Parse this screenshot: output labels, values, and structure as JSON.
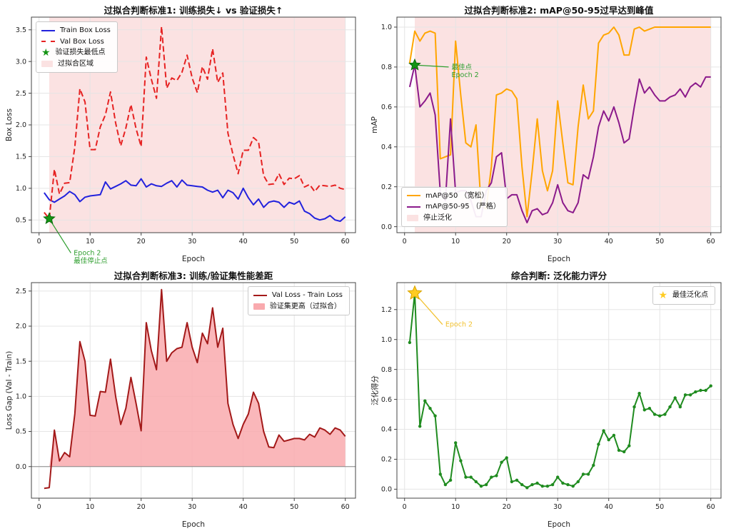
{
  "page": {
    "background": "#ffffff"
  },
  "colors": {
    "train_blue": "#2222dd",
    "val_red": "#e62222",
    "star_green": "#149414",
    "overfit_shade_pink": "#fbe2e2",
    "map50_orange": "#ffa500",
    "map95_purple": "#8b1a8b",
    "gap_darkred": "#a31919",
    "gap_fill_pink": "#f9aaae",
    "score_green": "#1f8b1f",
    "best_gold": "#ffcc22",
    "grid_gray": "#e5e5e5"
  },
  "chart_data": [
    {
      "type": "line",
      "title": "过拟合判断标准1: 训练损失↓ vs 验证损失↑",
      "xlabel": "Epoch",
      "ylabel": "Box Loss",
      "x_epoch_start": 1,
      "xlim": [
        -1.5,
        62
      ],
      "ylim": [
        0.3,
        3.7
      ],
      "xticks": [
        0,
        10,
        20,
        30,
        40,
        50,
        60
      ],
      "yticks": [
        0.5,
        1.0,
        1.5,
        2.0,
        2.5,
        3.0,
        3.5
      ],
      "grid": true,
      "shade": {
        "from": 2,
        "to": 60,
        "color": "#fbe2e2"
      },
      "series": [
        {
          "name": "Train Box Loss",
          "color": "#2222dd",
          "style": "solid",
          "width": 2,
          "values": [
            0.93,
            0.82,
            0.78,
            0.83,
            0.88,
            0.95,
            0.9,
            0.79,
            0.86,
            0.88,
            0.89,
            0.9,
            1.1,
            0.99,
            1.03,
            1.07,
            1.12,
            1.05,
            1.04,
            1.15,
            1.02,
            1.07,
            1.04,
            1.03,
            1.08,
            1.12,
            1.02,
            1.13,
            1.05,
            1.04,
            1.03,
            1.02,
            0.97,
            0.94,
            0.97,
            0.85,
            0.97,
            0.93,
            0.83,
            1.0,
            0.85,
            0.74,
            0.83,
            0.7,
            0.78,
            0.8,
            0.78,
            0.7,
            0.78,
            0.75,
            0.8,
            0.64,
            0.6,
            0.53,
            0.5,
            0.52,
            0.57,
            0.5,
            0.48,
            0.55
          ]
        },
        {
          "name": "Val Box Loss",
          "color": "#e62222",
          "style": "dashed",
          "width": 2,
          "values": [
            0.62,
            0.52,
            1.3,
            0.91,
            1.08,
            1.09,
            1.65,
            2.57,
            2.36,
            1.61,
            1.61,
            1.97,
            2.16,
            2.52,
            2.03,
            1.67,
            1.95,
            2.32,
            1.94,
            1.66,
            3.07,
            2.72,
            2.42,
            3.55,
            2.58,
            2.74,
            2.7,
            2.83,
            3.1,
            2.74,
            2.51,
            2.92,
            2.72,
            3.2,
            2.67,
            2.82,
            1.87,
            1.53,
            1.23,
            1.6,
            1.6,
            1.8,
            1.73,
            1.2,
            1.06,
            1.07,
            1.23,
            1.06,
            1.16,
            1.15,
            1.2,
            1.02,
            1.06,
            0.95,
            1.05,
            1.04,
            1.03,
            1.05,
            1.0,
            0.98
          ]
        }
      ],
      "star": {
        "x": 2,
        "y": 0.52,
        "color": "#149414",
        "edge": "#0b6b0b",
        "size": 8,
        "label": "验证损失最低点"
      },
      "annotation": {
        "lines": [
          "Epoch 2",
          "最佳停止点"
        ],
        "color": "#2e9e2e",
        "tx": 6.8,
        "ty": -0.02,
        "from": [
          2,
          0.52
        ]
      },
      "legend": {
        "pos": "top-left",
        "items": [
          {
            "swatch": "line",
            "color": "#2222dd",
            "label": "Train Box Loss"
          },
          {
            "swatch": "dash",
            "color": "#e62222",
            "label": "Val Box Loss"
          },
          {
            "swatch": "star",
            "color": "#149414",
            "label": "验证损失最低点"
          },
          {
            "swatch": "patch",
            "color": "#fbe2e2",
            "label": "过拟合区域"
          }
        ]
      }
    },
    {
      "type": "line",
      "title": "过拟合判断标准2: mAP@50-95过早达到峰值",
      "xlabel": "Epoch",
      "ylabel": "mAP",
      "x_epoch_start": 1,
      "xlim": [
        -1.5,
        62
      ],
      "ylim": [
        -0.03,
        1.05
      ],
      "xticks": [
        0,
        10,
        20,
        30,
        40,
        50,
        60
      ],
      "yticks": [
        0.0,
        0.2,
        0.4,
        0.6,
        0.8,
        1.0
      ],
      "grid": true,
      "shade": {
        "from": 2,
        "to": 60,
        "color": "#fbe2e2"
      },
      "series": [
        {
          "name": "mAP@50 （宽松）",
          "color": "#ffa500",
          "style": "solid",
          "width": 2,
          "values": [
            0.82,
            0.98,
            0.93,
            0.97,
            0.98,
            0.97,
            0.34,
            0.35,
            0.36,
            0.93,
            0.66,
            0.42,
            0.4,
            0.51,
            0.1,
            0.09,
            0.3,
            0.66,
            0.67,
            0.69,
            0.68,
            0.64,
            0.3,
            0.05,
            0.28,
            0.54,
            0.28,
            0.18,
            0.28,
            0.63,
            0.42,
            0.22,
            0.21,
            0.5,
            0.71,
            0.54,
            0.58,
            0.92,
            0.96,
            0.97,
            1.0,
            0.96,
            0.86,
            0.86,
            0.99,
            1.0,
            0.98,
            0.99,
            1.0,
            1.0,
            1.0,
            1.0,
            1.0,
            1.0,
            1.0,
            1.0,
            1.0,
            1.0,
            1.0,
            1.0
          ]
        },
        {
          "name": "mAP@50-95 （严格）",
          "color": "#8b1a8b",
          "style": "solid",
          "width": 2,
          "values": [
            0.7,
            0.81,
            0.6,
            0.63,
            0.67,
            0.56,
            0.17,
            0.13,
            0.54,
            0.17,
            0.18,
            0.18,
            0.13,
            0.05,
            0.05,
            0.18,
            0.22,
            0.35,
            0.37,
            0.14,
            0.16,
            0.16,
            0.08,
            0.02,
            0.08,
            0.09,
            0.06,
            0.07,
            0.12,
            0.21,
            0.12,
            0.08,
            0.07,
            0.12,
            0.26,
            0.24,
            0.35,
            0.5,
            0.58,
            0.53,
            0.6,
            0.52,
            0.42,
            0.44,
            0.6,
            0.74,
            0.67,
            0.7,
            0.66,
            0.63,
            0.63,
            0.65,
            0.66,
            0.69,
            0.65,
            0.7,
            0.72,
            0.7,
            0.75,
            0.75
          ]
        }
      ],
      "star": {
        "x": 2,
        "y": 0.81,
        "color": "#149414",
        "edge": "#0b6b0b",
        "size": 8,
        "label": "最佳点"
      },
      "annotation": {
        "lines": [
          "最佳点",
          "Epoch 2"
        ],
        "color": "#2e9e2e",
        "tx": 9.2,
        "ty": 0.8,
        "from": [
          2,
          0.81
        ]
      },
      "legend": {
        "pos": "bottom-left",
        "items": [
          {
            "swatch": "line",
            "color": "#ffa500",
            "label": "mAP@50 （宽松）"
          },
          {
            "swatch": "line",
            "color": "#8b1a8b",
            "label": "mAP@50-95 （严格）"
          },
          {
            "swatch": "patch",
            "color": "#fbe2e2",
            "label": "停止泛化"
          }
        ]
      }
    },
    {
      "type": "area",
      "title": "过拟合判断标准3: 训练/验证集性能差距",
      "xlabel": "Epoch",
      "ylabel": "Loss Gap (Val - Train)",
      "x_epoch_start": 1,
      "xlim": [
        -1.5,
        62
      ],
      "ylim": [
        -0.45,
        2.62
      ],
      "xticks": [
        0,
        10,
        20,
        30,
        40,
        50,
        60
      ],
      "yticks": [
        0.0,
        0.5,
        1.0,
        1.5,
        2.0,
        2.5
      ],
      "grid": true,
      "zero_line": true,
      "fill_under": "#f9aaae",
      "series": [
        {
          "name": "Val Loss - Train Loss",
          "color": "#a31919",
          "style": "solid",
          "width": 2,
          "values": [
            -0.31,
            -0.3,
            0.52,
            0.08,
            0.2,
            0.14,
            0.75,
            1.78,
            1.5,
            0.73,
            0.72,
            1.07,
            1.06,
            1.53,
            1.0,
            0.6,
            0.83,
            1.27,
            0.9,
            0.51,
            2.05,
            1.65,
            1.38,
            2.52,
            1.5,
            1.62,
            1.68,
            1.7,
            2.05,
            1.7,
            1.48,
            1.9,
            1.75,
            2.26,
            1.7,
            1.97,
            0.9,
            0.6,
            0.4,
            0.6,
            0.75,
            1.06,
            0.9,
            0.5,
            0.28,
            0.27,
            0.45,
            0.36,
            0.38,
            0.4,
            0.4,
            0.38,
            0.46,
            0.42,
            0.55,
            0.52,
            0.46,
            0.55,
            0.52,
            0.43
          ]
        }
      ],
      "legend": {
        "pos": "top-right",
        "items": [
          {
            "swatch": "line",
            "color": "#a31919",
            "label": "Val Loss - Train Loss"
          },
          {
            "swatch": "patch",
            "color": "#f9aaae",
            "label": "验证集更高（过拟合）"
          }
        ]
      }
    },
    {
      "type": "line",
      "title": "综合判断: 泛化能力评分",
      "xlabel": "Epoch",
      "ylabel": "泛化得分",
      "x_epoch_start": 1,
      "xlim": [
        -1.5,
        62
      ],
      "ylim": [
        -0.06,
        1.38
      ],
      "xticks": [
        0,
        10,
        20,
        30,
        40,
        50,
        60
      ],
      "yticks": [
        0.0,
        0.2,
        0.4,
        0.6,
        0.8,
        1.0,
        1.2
      ],
      "grid": true,
      "series": [
        {
          "name": "泛化得分",
          "color": "#1f8b1f",
          "style": "solid",
          "width": 2,
          "marker": true,
          "values": [
            0.98,
            1.31,
            0.42,
            0.59,
            0.54,
            0.49,
            0.1,
            0.03,
            0.06,
            0.31,
            0.19,
            0.08,
            0.08,
            0.05,
            0.02,
            0.03,
            0.08,
            0.09,
            0.18,
            0.21,
            0.05,
            0.06,
            0.03,
            0.01,
            0.03,
            0.04,
            0.02,
            0.02,
            0.03,
            0.08,
            0.04,
            0.03,
            0.02,
            0.05,
            0.1,
            0.1,
            0.16,
            0.3,
            0.39,
            0.33,
            0.36,
            0.26,
            0.25,
            0.29,
            0.55,
            0.64,
            0.53,
            0.54,
            0.5,
            0.49,
            0.5,
            0.55,
            0.61,
            0.55,
            0.63,
            0.63,
            0.65,
            0.66,
            0.66,
            0.69
          ]
        }
      ],
      "star": {
        "x": 2,
        "y": 1.31,
        "color": "#ffcc22",
        "edge": "#d9a400",
        "size": 10,
        "label": "最佳泛化点"
      },
      "annotation": {
        "lines": [
          "Epoch 2"
        ],
        "color": "#f2c12e",
        "tx": 8.0,
        "ty": 1.1,
        "from": [
          2,
          1.31
        ]
      },
      "legend": {
        "pos": "top-right",
        "items": [
          {
            "swatch": "star",
            "color": "#ffcc22",
            "label": "最佳泛化点"
          }
        ]
      }
    }
  ]
}
